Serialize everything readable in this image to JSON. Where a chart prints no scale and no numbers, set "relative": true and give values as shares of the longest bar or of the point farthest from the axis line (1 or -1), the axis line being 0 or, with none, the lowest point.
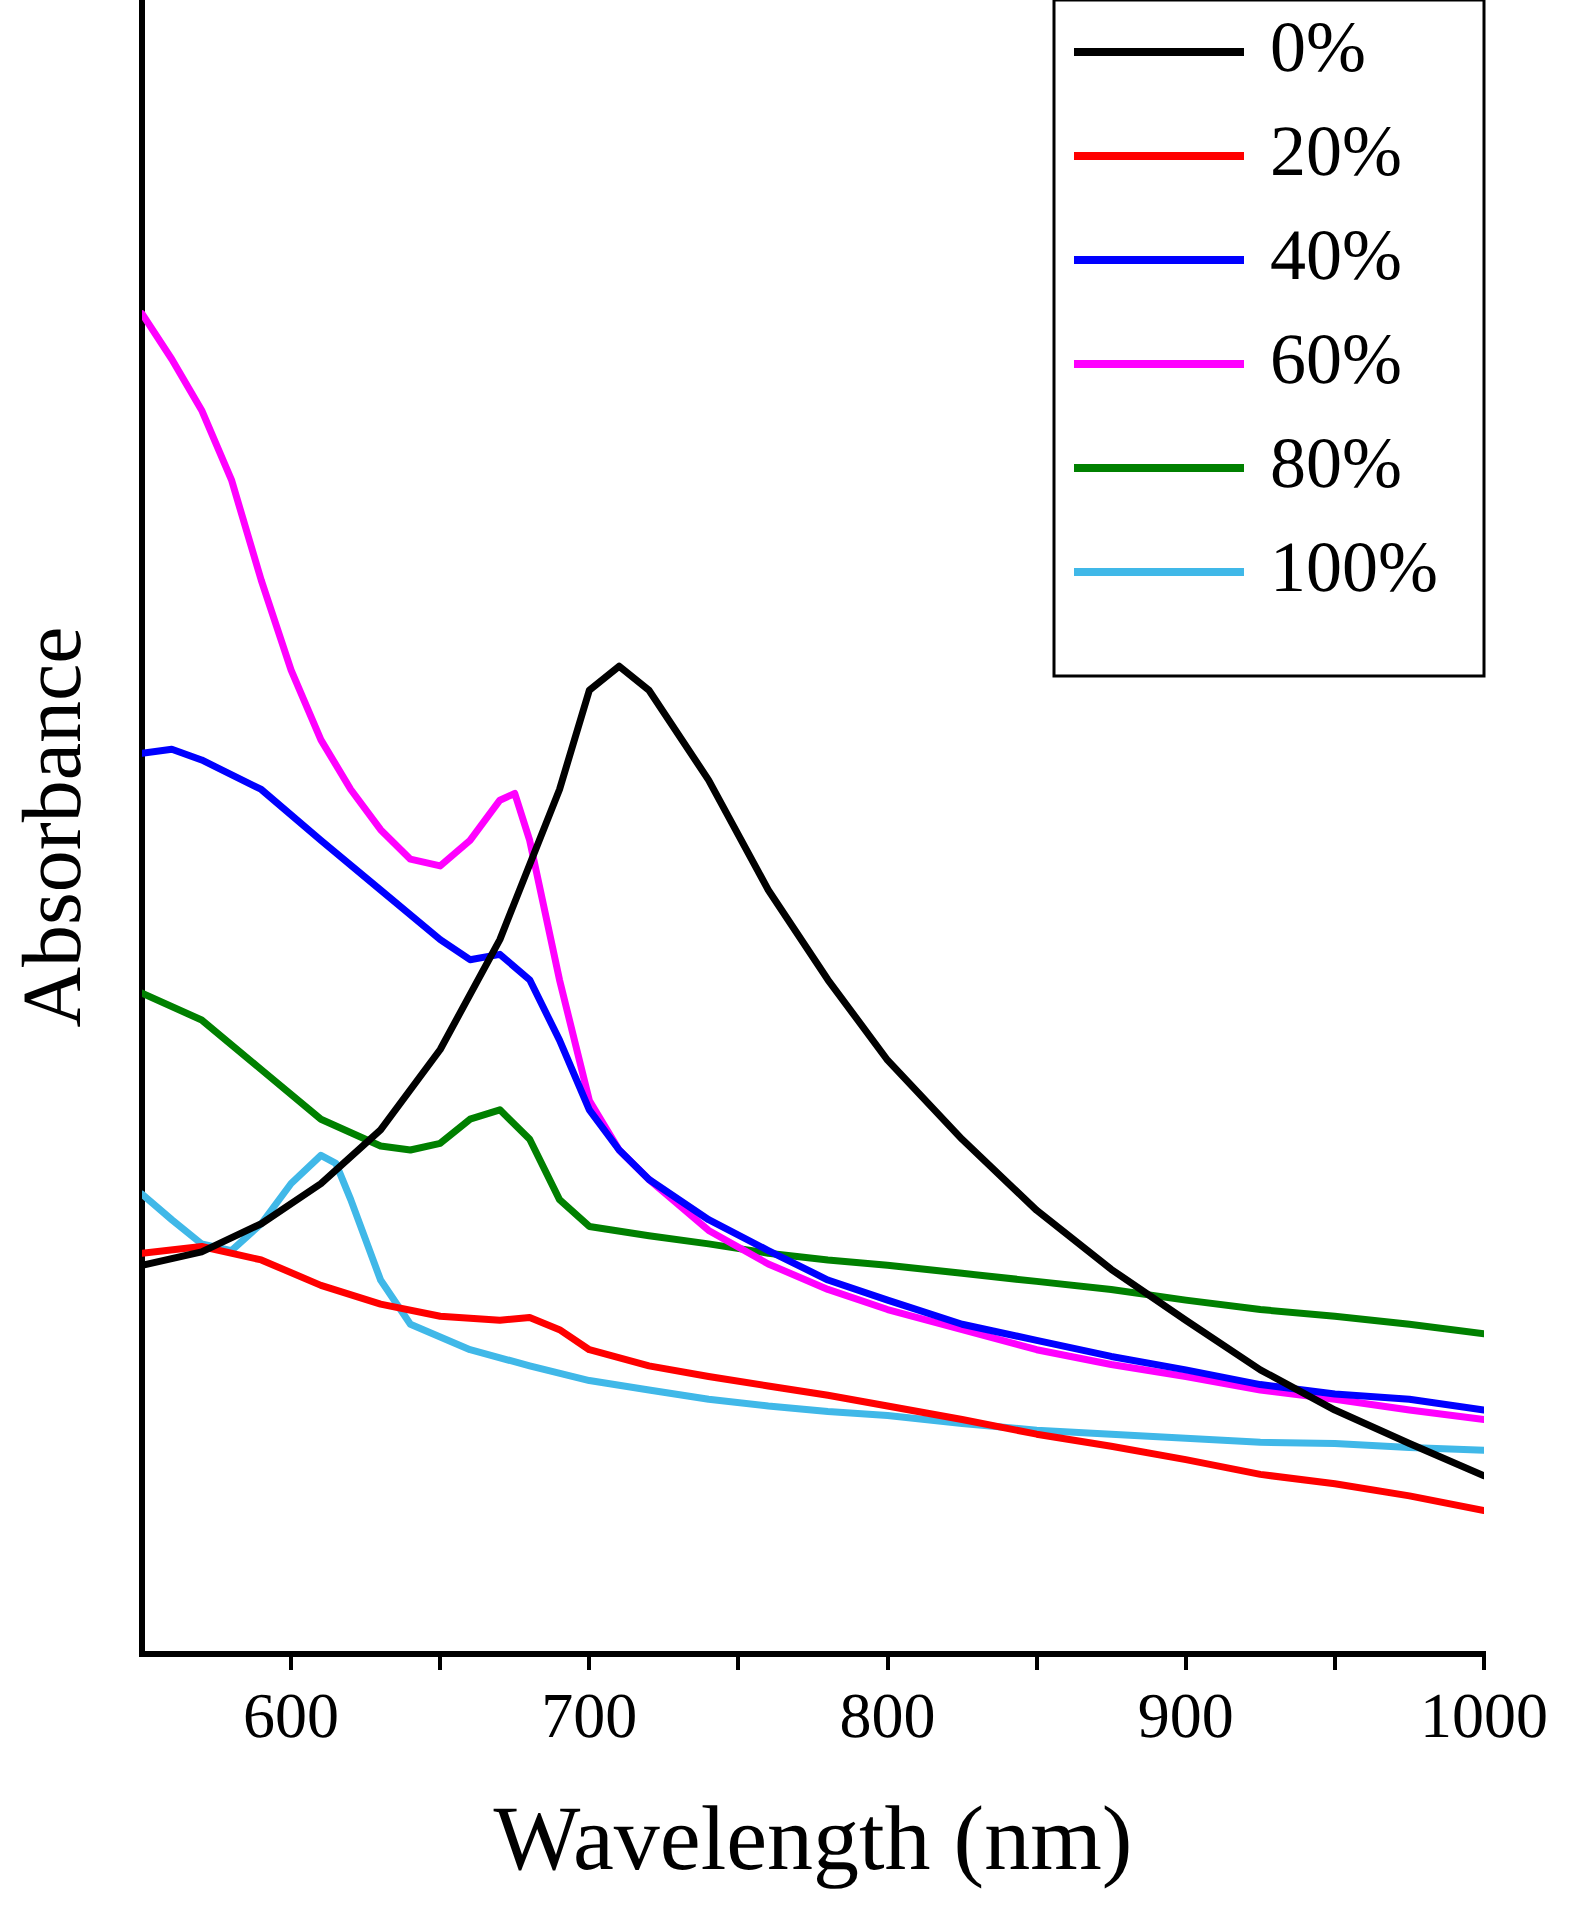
{
  "chart_data": {
    "type": "line",
    "xlabel": "Wavelength (nm)",
    "ylabel": "Absorbance",
    "relative": true,
    "legend": "top right",
    "marker": "none",
    "line_style": "solid",
    "grid": false,
    "xlim": [
      550,
      1000
    ],
    "xticks": [
      600,
      {
        "value": 650,
        "label": null
      },
      700,
      {
        "value": 750,
        "label": null
      },
      800,
      {
        "value": 850,
        "label": null
      },
      900,
      {
        "value": 950,
        "label": null
      },
      1000
    ],
    "series": [
      {
        "name": "0%",
        "color": "#000000",
        "x": [
          550,
          570,
          590,
          610,
          630,
          650,
          670,
          690,
          700,
          710,
          720,
          740,
          760,
          780,
          800,
          825,
          850,
          875,
          900,
          925,
          950,
          975,
          1000
        ],
        "values": [
          0.29,
          0.3,
          0.321,
          0.351,
          0.391,
          0.451,
          0.533,
          0.645,
          0.719,
          0.737,
          0.719,
          0.652,
          0.57,
          0.503,
          0.443,
          0.384,
          0.331,
          0.287,
          0.249,
          0.212,
          0.182,
          0.157,
          0.133
        ]
      },
      {
        "name": "20%",
        "color": "#ff0000",
        "x": [
          550,
          570,
          590,
          610,
          630,
          650,
          670,
          680,
          690,
          700,
          720,
          740,
          760,
          780,
          800,
          825,
          850,
          875,
          900,
          925,
          950,
          975,
          1000
        ],
        "values": [
          0.299,
          0.304,
          0.294,
          0.275,
          0.261,
          0.252,
          0.249,
          0.251,
          0.242,
          0.227,
          0.215,
          0.207,
          0.2,
          0.193,
          0.185,
          0.175,
          0.164,
          0.155,
          0.145,
          0.134,
          0.127,
          0.118,
          0.107
        ]
      },
      {
        "name": "40%",
        "color": "#0000ff",
        "x": [
          550,
          560,
          570,
          590,
          610,
          630,
          650,
          660,
          670,
          680,
          690,
          700,
          710,
          720,
          740,
          760,
          780,
          800,
          825,
          850,
          875,
          900,
          925,
          950,
          975,
          1000
        ],
        "values": [
          0.672,
          0.675,
          0.667,
          0.645,
          0.607,
          0.57,
          0.533,
          0.518,
          0.522,
          0.503,
          0.458,
          0.406,
          0.376,
          0.354,
          0.324,
          0.301,
          0.279,
          0.264,
          0.246,
          0.234,
          0.222,
          0.212,
          0.201,
          0.194,
          0.19,
          0.182
        ]
      },
      {
        "name": "60%",
        "color": "#ff00ff",
        "x": [
          550,
          560,
          570,
          580,
          590,
          600,
          610,
          620,
          630,
          640,
          650,
          660,
          670,
          675,
          680,
          690,
          700,
          710,
          720,
          740,
          760,
          780,
          800,
          825,
          850,
          875,
          900,
          925,
          950,
          975,
          1000
        ],
        "values": [
          1.0,
          0.966,
          0.928,
          0.876,
          0.801,
          0.734,
          0.682,
          0.645,
          0.615,
          0.593,
          0.588,
          0.607,
          0.637,
          0.642,
          0.607,
          0.503,
          0.413,
          0.376,
          0.354,
          0.316,
          0.291,
          0.272,
          0.257,
          0.242,
          0.227,
          0.216,
          0.207,
          0.197,
          0.19,
          0.182,
          0.175
        ]
      },
      {
        "name": "80%",
        "color": "#008000",
        "x": [
          550,
          570,
          590,
          610,
          630,
          640,
          650,
          660,
          670,
          680,
          690,
          700,
          720,
          740,
          760,
          780,
          800,
          825,
          850,
          875,
          900,
          925,
          950,
          975,
          1000
        ],
        "values": [
          0.493,
          0.473,
          0.436,
          0.399,
          0.379,
          0.376,
          0.381,
          0.399,
          0.406,
          0.384,
          0.339,
          0.319,
          0.312,
          0.306,
          0.299,
          0.294,
          0.29,
          0.284,
          0.278,
          0.272,
          0.264,
          0.257,
          0.252,
          0.246,
          0.239
        ]
      },
      {
        "name": "100%",
        "color": "#40b8e8",
        "x": [
          550,
          560,
          570,
          580,
          590,
          600,
          610,
          615,
          620,
          630,
          640,
          660,
          680,
          700,
          720,
          740,
          760,
          780,
          800,
          825,
          850,
          875,
          900,
          925,
          950,
          975,
          1000
        ],
        "values": [
          0.343,
          0.324,
          0.306,
          0.301,
          0.321,
          0.351,
          0.372,
          0.366,
          0.339,
          0.279,
          0.246,
          0.227,
          0.215,
          0.204,
          0.197,
          0.19,
          0.185,
          0.181,
          0.178,
          0.172,
          0.167,
          0.164,
          0.161,
          0.158,
          0.157,
          0.154,
          0.152
        ]
      }
    ]
  }
}
